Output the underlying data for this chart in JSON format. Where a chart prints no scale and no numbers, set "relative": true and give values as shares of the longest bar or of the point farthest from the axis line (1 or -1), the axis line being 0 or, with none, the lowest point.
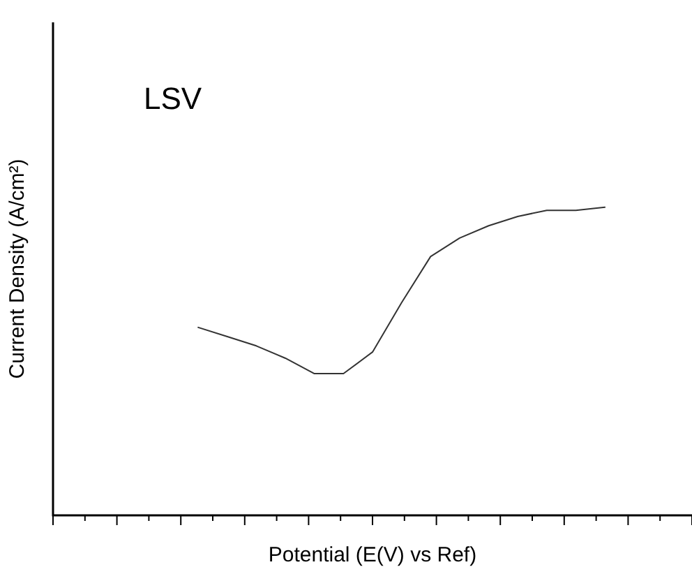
{
  "chart_data": {
    "type": "line",
    "relative": true,
    "xlabel": "Potential (E(V) vs Ref)",
    "ylabel": "Current Density (A/cm²)",
    "annotations": [
      "LSV"
    ],
    "categories": [
      null,
      null,
      null,
      null,
      null,
      null,
      null,
      null,
      null,
      null,
      null,
      null,
      null,
      null,
      null,
      null,
      null,
      null,
      null,
      null,
      null,
      null,
      null
    ],
    "series": [
      {
        "color": "#333333",
        "values": [
          null,
          null,
          null,
          null,
          null,
          0.61,
          0.58,
          0.55,
          0.51,
          0.46,
          0.46,
          0.53,
          0.69,
          0.84,
          0.9,
          0.94,
          0.97,
          0.99,
          0.99,
          1,
          null,
          null,
          null
        ]
      }
    ],
    "marker": "none",
    "line_style": "solid",
    "grid": false,
    "legend": false
  }
}
